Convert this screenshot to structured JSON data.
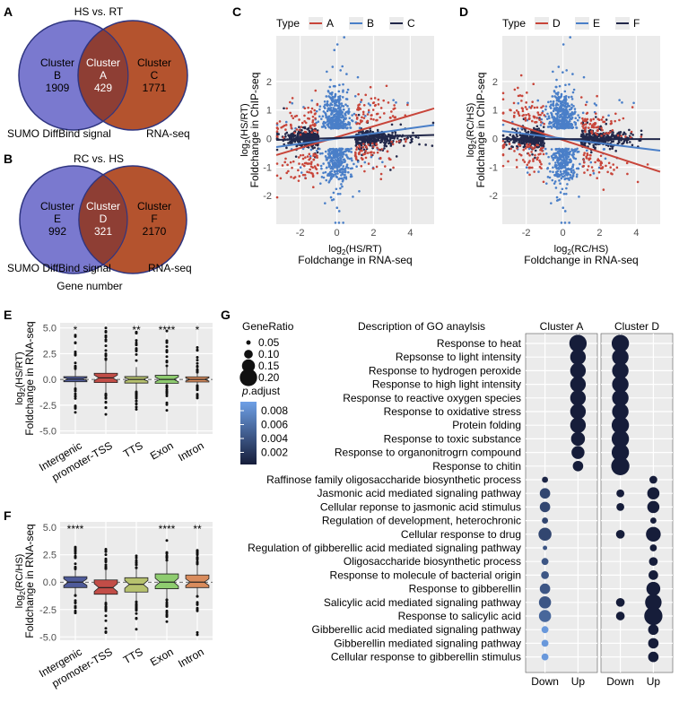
{
  "panels": {
    "a": "A",
    "b": "B",
    "c": "C",
    "d": "D",
    "e": "E",
    "f": "F",
    "g": "G"
  },
  "venn_a": {
    "title": "HS vs. RT",
    "left": {
      "label": "Cluster",
      "name": "B",
      "count": "1909"
    },
    "mid": {
      "label": "Cluster",
      "name": "A",
      "count": "429"
    },
    "right": {
      "label": "Cluster",
      "name": "C",
      "count": "1771"
    },
    "caption_left": "SUMO DiffBind signal",
    "caption_right": "RNA-seq",
    "colors": {
      "left": "#7a79cf",
      "right": "#b4532e",
      "mid": "#8e3e34"
    }
  },
  "venn_b": {
    "title": "RC vs. HS",
    "left": {
      "label": "Cluster",
      "name": "E",
      "count": "992"
    },
    "mid": {
      "label": "Cluster",
      "name": "D",
      "count": "321"
    },
    "right": {
      "label": "Cluster",
      "name": "F",
      "count": "2170"
    },
    "caption_left": "SUMO DiffBind signal",
    "caption_right": "RNA-seq",
    "footer": "Gene number"
  },
  "chart_data": [
    {
      "id": "C",
      "type": "scatter",
      "legend_title": "Type",
      "legend": [
        "A",
        "B",
        "C"
      ],
      "colors": [
        "#c8453a",
        "#4a7fc8",
        "#22284a"
      ],
      "xlabel": "Foldchange in RNA-seq",
      "xlabel_top": "log2(HS/RT)",
      "ylabel": "Foldchange in ChIP-seq",
      "ylabel_top": "log2(HS/RT)",
      "xlim": [
        -3.3,
        5.3
      ],
      "ylim": [
        -3,
        3.6
      ],
      "xticks": [
        -2,
        0,
        2,
        4
      ],
      "yticks": [
        -2,
        -1,
        0,
        1,
        2
      ],
      "fit_lines": [
        {
          "series": "A",
          "slope": 0.19,
          "intercept": 0.05
        },
        {
          "series": "B",
          "slope": 0.09,
          "intercept": 0.0
        },
        {
          "series": "C",
          "slope": 0.02,
          "intercept": 0.02
        }
      ]
    },
    {
      "id": "D",
      "type": "scatter",
      "legend_title": "Type",
      "legend": [
        "D",
        "E",
        "F"
      ],
      "colors": [
        "#c8453a",
        "#4a7fc8",
        "#22284a"
      ],
      "xlabel": "Foldchange in RNA-seq",
      "xlabel_top": "log2(RC/HS)",
      "ylabel": "Foldchange in ChIP-seq",
      "ylabel_top": "log2(RC/HS)",
      "xlim": [
        -3.3,
        5.3
      ],
      "ylim": [
        -3,
        3.6
      ],
      "xticks": [
        -2,
        0,
        2,
        4
      ],
      "yticks": [
        -2,
        -1,
        0,
        1,
        2
      ],
      "fit_lines": [
        {
          "series": "D",
          "slope": -0.21,
          "intercept": -0.05
        },
        {
          "series": "E",
          "slope": -0.08,
          "intercept": 0.0
        },
        {
          "series": "F",
          "slope": 0.0,
          "intercept": -0.02
        }
      ]
    },
    {
      "id": "E",
      "type": "box",
      "ylabel": "Foldchange in RNA-seq",
      "ylabel_top": "log2(HS/RT)",
      "categories": [
        "Intergenic",
        "promoter-TSS",
        "TTS",
        "Exon",
        "Intron"
      ],
      "colors": [
        "#4f5b9a",
        "#c24d47",
        "#b7c26e",
        "#8ecc6f",
        "#d98c5d"
      ],
      "ylim": [
        -5.3,
        5.5
      ],
      "yticks": [
        -5.0,
        -2.5,
        0.0,
        2.5,
        5.0
      ],
      "significance": [
        "*",
        "",
        "**",
        "****",
        "*"
      ],
      "boxes": [
        {
          "q1": -0.22,
          "median": 0.03,
          "q3": 0.27,
          "lo": -0.9,
          "hi": 1.0,
          "outlier_min": -3.2,
          "outlier_max": 4.3
        },
        {
          "q1": -0.3,
          "median": 0.15,
          "q3": 0.6,
          "lo": -1.4,
          "hi": 1.9,
          "outlier_min": -3.4,
          "outlier_max": 5.0
        },
        {
          "q1": -0.35,
          "median": 0.0,
          "q3": 0.28,
          "lo": -1.2,
          "hi": 1.2,
          "outlier_min": -2.9,
          "outlier_max": 4.6
        },
        {
          "q1": -0.38,
          "median": 0.0,
          "q3": 0.4,
          "lo": -0.6,
          "hi": 1.3,
          "outlier_min": -3.0,
          "outlier_max": 4.7
        },
        {
          "q1": -0.25,
          "median": 0.0,
          "q3": 0.25,
          "lo": -0.6,
          "hi": 0.7,
          "outlier_min": -1.8,
          "outlier_max": 3.1
        }
      ]
    },
    {
      "id": "F",
      "type": "box",
      "ylabel": "Foldchange in RNA-seq",
      "ylabel_top": "log2(RC/HS)",
      "categories": [
        "Intergenic",
        "promoter-TSS",
        "TTS",
        "Exon",
        "Intron"
      ],
      "colors": [
        "#4f5b9a",
        "#c24d47",
        "#b7c26e",
        "#8ecc6f",
        "#d98c5d"
      ],
      "ylim": [
        -5.3,
        5.5
      ],
      "yticks": [
        -5.0,
        -2.5,
        0.0,
        2.5,
        5.0
      ],
      "significance": [
        "****",
        "",
        "",
        "****",
        "**"
      ],
      "boxes": [
        {
          "q1": -0.5,
          "median": 0.0,
          "q3": 0.5,
          "lo": -1.2,
          "hi": 1.2,
          "outlier_min": -2.8,
          "outlier_max": 3.2
        },
        {
          "q1": -1.1,
          "median": -0.5,
          "q3": 0.2,
          "lo": -1.9,
          "hi": 1.2,
          "outlier_min": -4.6,
          "outlier_max": 3.0
        },
        {
          "q1": -0.9,
          "median": -0.2,
          "q3": 0.4,
          "lo": -1.8,
          "hi": 1.3,
          "outlier_min": -4.3,
          "outlier_max": 2.4
        },
        {
          "q1": -0.6,
          "median": 0.0,
          "q3": 0.75,
          "lo": -1.6,
          "hi": 2.0,
          "outlier_min": -3.6,
          "outlier_max": 3.8
        },
        {
          "q1": -0.5,
          "median": 0.0,
          "q3": 0.65,
          "lo": -1.2,
          "hi": 1.6,
          "outlier_min": -4.8,
          "outlier_max": 2.9
        }
      ]
    },
    {
      "id": "G",
      "type": "dot",
      "title": "Description of GO anaylsis",
      "facets": [
        "Cluster A",
        "Cluster D"
      ],
      "xcats": [
        "Down",
        "Up"
      ],
      "size_legend_title": "GeneRatio",
      "size_legend": [
        0.05,
        0.1,
        0.15,
        0.2
      ],
      "size_legend_labels": [
        "0.05",
        "0.10",
        "0.15",
        "0.20"
      ],
      "color_legend_title": "p.adjust",
      "color_legend": [
        0.008,
        0.006,
        0.004,
        0.002
      ],
      "color_legend_labels": [
        "0.008",
        "0.006",
        "0.004",
        "0.002"
      ],
      "terms": [
        "Response to heat",
        "Repsonse to light intensity",
        "Response to hydrogen peroxide",
        "Response to high light intensity",
        "Response to reactive oxygen species",
        "Response to oxidative stress",
        "Protein folding",
        "Response to toxic substance",
        "Response to organonitrogrn compound",
        "Response to chitin",
        "Raffinose family oligosaccharide biosynthetic process",
        "Jasmonic acid mediated signaling pathway",
        "Cellular reponse to jasmonic acid stimulus",
        "Regulation of development, heterochronic",
        "Cellular response to drug",
        "Regulation of gibberellic acid mediated signaling pathway",
        "Oligosaccharide biosynthetic process",
        "Response to molecule of bacterial origin",
        "Response to gibberellin",
        "Salicylic acid mediated signaling pathway",
        "Response to salicylic acid",
        "Gibberellic acid mediated signaling pathway",
        "Gibberellin mediated signaling pathway",
        "Cellular response to gibberellin stimulus"
      ],
      "dots": [
        {
          "term": 0,
          "facet": 0,
          "x": "Up",
          "ratio": 0.2,
          "p": 0.0005
        },
        {
          "term": 1,
          "facet": 0,
          "x": "Up",
          "ratio": 0.18,
          "p": 0.0005
        },
        {
          "term": 2,
          "facet": 0,
          "x": "Up",
          "ratio": 0.18,
          "p": 0.0005
        },
        {
          "term": 3,
          "facet": 0,
          "x": "Up",
          "ratio": 0.18,
          "p": 0.0005
        },
        {
          "term": 4,
          "facet": 0,
          "x": "Up",
          "ratio": 0.18,
          "p": 0.0005
        },
        {
          "term": 5,
          "facet": 0,
          "x": "Up",
          "ratio": 0.18,
          "p": 0.0005
        },
        {
          "term": 6,
          "facet": 0,
          "x": "Up",
          "ratio": 0.18,
          "p": 0.0005
        },
        {
          "term": 7,
          "facet": 0,
          "x": "Up",
          "ratio": 0.16,
          "p": 0.0005
        },
        {
          "term": 8,
          "facet": 0,
          "x": "Up",
          "ratio": 0.15,
          "p": 0.0005
        },
        {
          "term": 9,
          "facet": 0,
          "x": "Up",
          "ratio": 0.12,
          "p": 0.0005
        },
        {
          "term": 0,
          "facet": 1,
          "x": "Down",
          "ratio": 0.2,
          "p": 0.0005
        },
        {
          "term": 1,
          "facet": 1,
          "x": "Down",
          "ratio": 0.19,
          "p": 0.0005
        },
        {
          "term": 2,
          "facet": 1,
          "x": "Down",
          "ratio": 0.19,
          "p": 0.0005
        },
        {
          "term": 3,
          "facet": 1,
          "x": "Down",
          "ratio": 0.19,
          "p": 0.0005
        },
        {
          "term": 4,
          "facet": 1,
          "x": "Down",
          "ratio": 0.19,
          "p": 0.0005
        },
        {
          "term": 5,
          "facet": 1,
          "x": "Down",
          "ratio": 0.19,
          "p": 0.0005
        },
        {
          "term": 6,
          "facet": 1,
          "x": "Down",
          "ratio": 0.2,
          "p": 0.0005
        },
        {
          "term": 7,
          "facet": 1,
          "x": "Down",
          "ratio": 0.2,
          "p": 0.0005
        },
        {
          "term": 8,
          "facet": 1,
          "x": "Down",
          "ratio": 0.2,
          "p": 0.0005
        },
        {
          "term": 9,
          "facet": 1,
          "x": "Down",
          "ratio": 0.21,
          "p": 0.0005
        },
        {
          "term": 10,
          "facet": 0,
          "x": "Down",
          "ratio": 0.07,
          "p": 0.001
        },
        {
          "term": 11,
          "facet": 0,
          "x": "Down",
          "ratio": 0.12,
          "p": 0.003
        },
        {
          "term": 12,
          "facet": 0,
          "x": "Down",
          "ratio": 0.12,
          "p": 0.003
        },
        {
          "term": 13,
          "facet": 0,
          "x": "Down",
          "ratio": 0.07,
          "p": 0.003
        },
        {
          "term": 14,
          "facet": 0,
          "x": "Down",
          "ratio": 0.15,
          "p": 0.003
        },
        {
          "term": 15,
          "facet": 0,
          "x": "Down",
          "ratio": 0.05,
          "p": 0.004
        },
        {
          "term": 16,
          "facet": 0,
          "x": "Down",
          "ratio": 0.08,
          "p": 0.004
        },
        {
          "term": 17,
          "facet": 0,
          "x": "Down",
          "ratio": 0.09,
          "p": 0.004
        },
        {
          "term": 18,
          "facet": 0,
          "x": "Down",
          "ratio": 0.12,
          "p": 0.004
        },
        {
          "term": 19,
          "facet": 0,
          "x": "Down",
          "ratio": 0.14,
          "p": 0.004
        },
        {
          "term": 20,
          "facet": 0,
          "x": "Down",
          "ratio": 0.14,
          "p": 0.005
        },
        {
          "term": 21,
          "facet": 0,
          "x": "Down",
          "ratio": 0.08,
          "p": 0.008
        },
        {
          "term": 22,
          "facet": 0,
          "x": "Down",
          "ratio": 0.08,
          "p": 0.008
        },
        {
          "term": 23,
          "facet": 0,
          "x": "Down",
          "ratio": 0.08,
          "p": 0.008
        },
        {
          "term": 10,
          "facet": 1,
          "x": "Up",
          "ratio": 0.09,
          "p": 0.0005
        },
        {
          "term": 11,
          "facet": 1,
          "x": "Down",
          "ratio": 0.09,
          "p": 0.0005
        },
        {
          "term": 11,
          "facet": 1,
          "x": "Up",
          "ratio": 0.14,
          "p": 0.0005
        },
        {
          "term": 12,
          "facet": 1,
          "x": "Down",
          "ratio": 0.09,
          "p": 0.0005
        },
        {
          "term": 12,
          "facet": 1,
          "x": "Up",
          "ratio": 0.14,
          "p": 0.0005
        },
        {
          "term": 13,
          "facet": 1,
          "x": "Up",
          "ratio": 0.07,
          "p": 0.0005
        },
        {
          "term": 14,
          "facet": 1,
          "x": "Down",
          "ratio": 0.1,
          "p": 0.0005
        },
        {
          "term": 14,
          "facet": 1,
          "x": "Up",
          "ratio": 0.17,
          "p": 0.0005
        },
        {
          "term": 15,
          "facet": 1,
          "x": "Up",
          "ratio": 0.08,
          "p": 0.0005
        },
        {
          "term": 16,
          "facet": 1,
          "x": "Up",
          "ratio": 0.1,
          "p": 0.0005
        },
        {
          "term": 17,
          "facet": 1,
          "x": "Up",
          "ratio": 0.11,
          "p": 0.0005
        },
        {
          "term": 18,
          "facet": 1,
          "x": "Up",
          "ratio": 0.16,
          "p": 0.0005
        },
        {
          "term": 19,
          "facet": 1,
          "x": "Down",
          "ratio": 0.1,
          "p": 0.0005
        },
        {
          "term": 19,
          "facet": 1,
          "x": "Up",
          "ratio": 0.19,
          "p": 0.0005
        },
        {
          "term": 20,
          "facet": 1,
          "x": "Down",
          "ratio": 0.1,
          "p": 0.0005
        },
        {
          "term": 20,
          "facet": 1,
          "x": "Up",
          "ratio": 0.21,
          "p": 0.0005
        },
        {
          "term": 21,
          "facet": 1,
          "x": "Up",
          "ratio": 0.12,
          "p": 0.0005
        },
        {
          "term": 22,
          "facet": 1,
          "x": "Up",
          "ratio": 0.12,
          "p": 0.0005
        },
        {
          "term": 23,
          "facet": 1,
          "x": "Up",
          "ratio": 0.12,
          "p": 0.0005
        }
      ]
    }
  ]
}
